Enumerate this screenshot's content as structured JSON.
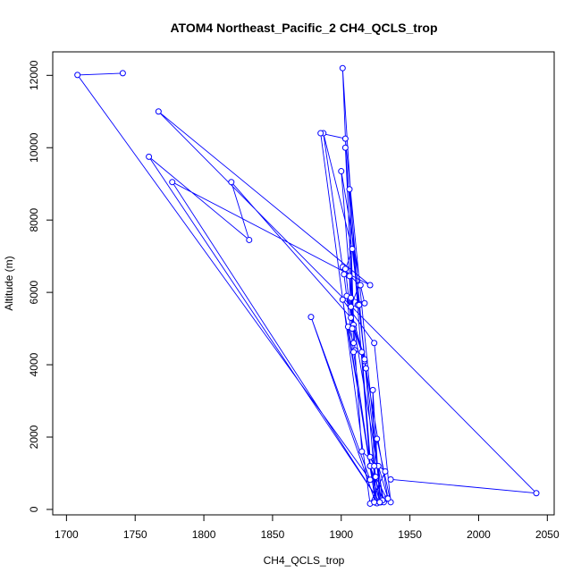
{
  "chart_data": {
    "type": "line",
    "title": "ATOM4 Northeast_Pacific_2 CH4_QCLS_trop",
    "xlabel": "CH4_QCLS_trop",
    "ylabel": "Altitude (m)",
    "xlim": [
      1690,
      2055
    ],
    "ylim": [
      -150,
      12650
    ],
    "xticks": [
      1700,
      1750,
      1800,
      1850,
      1900,
      1950,
      2000,
      2050
    ],
    "yticks": [
      0,
      2000,
      4000,
      6000,
      8000,
      10000,
      12000
    ],
    "grid": false,
    "series": [
      {
        "color": "#0000ff",
        "marker": "open-circle",
        "x": [
          1741,
          1708,
          1921,
          1878,
          1925,
          1905,
          1909,
          1901,
          1912,
          1907,
          1913,
          1901,
          1887,
          1908,
          1929,
          1903,
          1885,
          1921,
          1932,
          1915,
          1910,
          1903,
          1921,
          1931,
          1909,
          1906,
          1917,
          1909,
          1900,
          1914,
          1917,
          1904,
          1917,
          1926,
          1901,
          1924,
          1936,
          1926,
          1924,
          1928,
          1933,
          1925,
          1928,
          1921,
          1909,
          1902,
          1908,
          1913,
          1918,
          1934,
          1927,
          1930,
          1928,
          1923,
          1924,
          1924,
          1921,
          1915,
          1909,
          1907,
          1908,
          1903,
          1906,
          1907,
          1820,
          1833,
          1760,
          1928,
          1777,
          1921,
          1767,
          2042,
          1936
        ],
        "y": [
          12060,
          12010,
          820,
          5320,
          190,
          5050,
          4600,
          12200,
          5650,
          5600,
          6200,
          6700,
          10400,
          7200,
          200,
          10250,
          10400,
          160,
          1050,
          1600,
          4400,
          10000,
          1200,
          200,
          5100,
          8850,
          4100,
          5100,
          9350,
          6200,
          5700,
          5900,
          4150,
          170,
          5800,
          4600,
          200,
          1950,
          1200,
          200,
          300,
          900,
          200,
          1200,
          4350,
          6500,
          7200,
          5650,
          3900,
          300,
          1200,
          250,
          200,
          3300,
          200,
          1200,
          1450,
          4350,
          5000,
          5850,
          5000,
          6650,
          6450,
          5300,
          9050,
          7450,
          9750,
          200,
          9050,
          6200,
          11000,
          450,
          830
        ]
      }
    ]
  }
}
